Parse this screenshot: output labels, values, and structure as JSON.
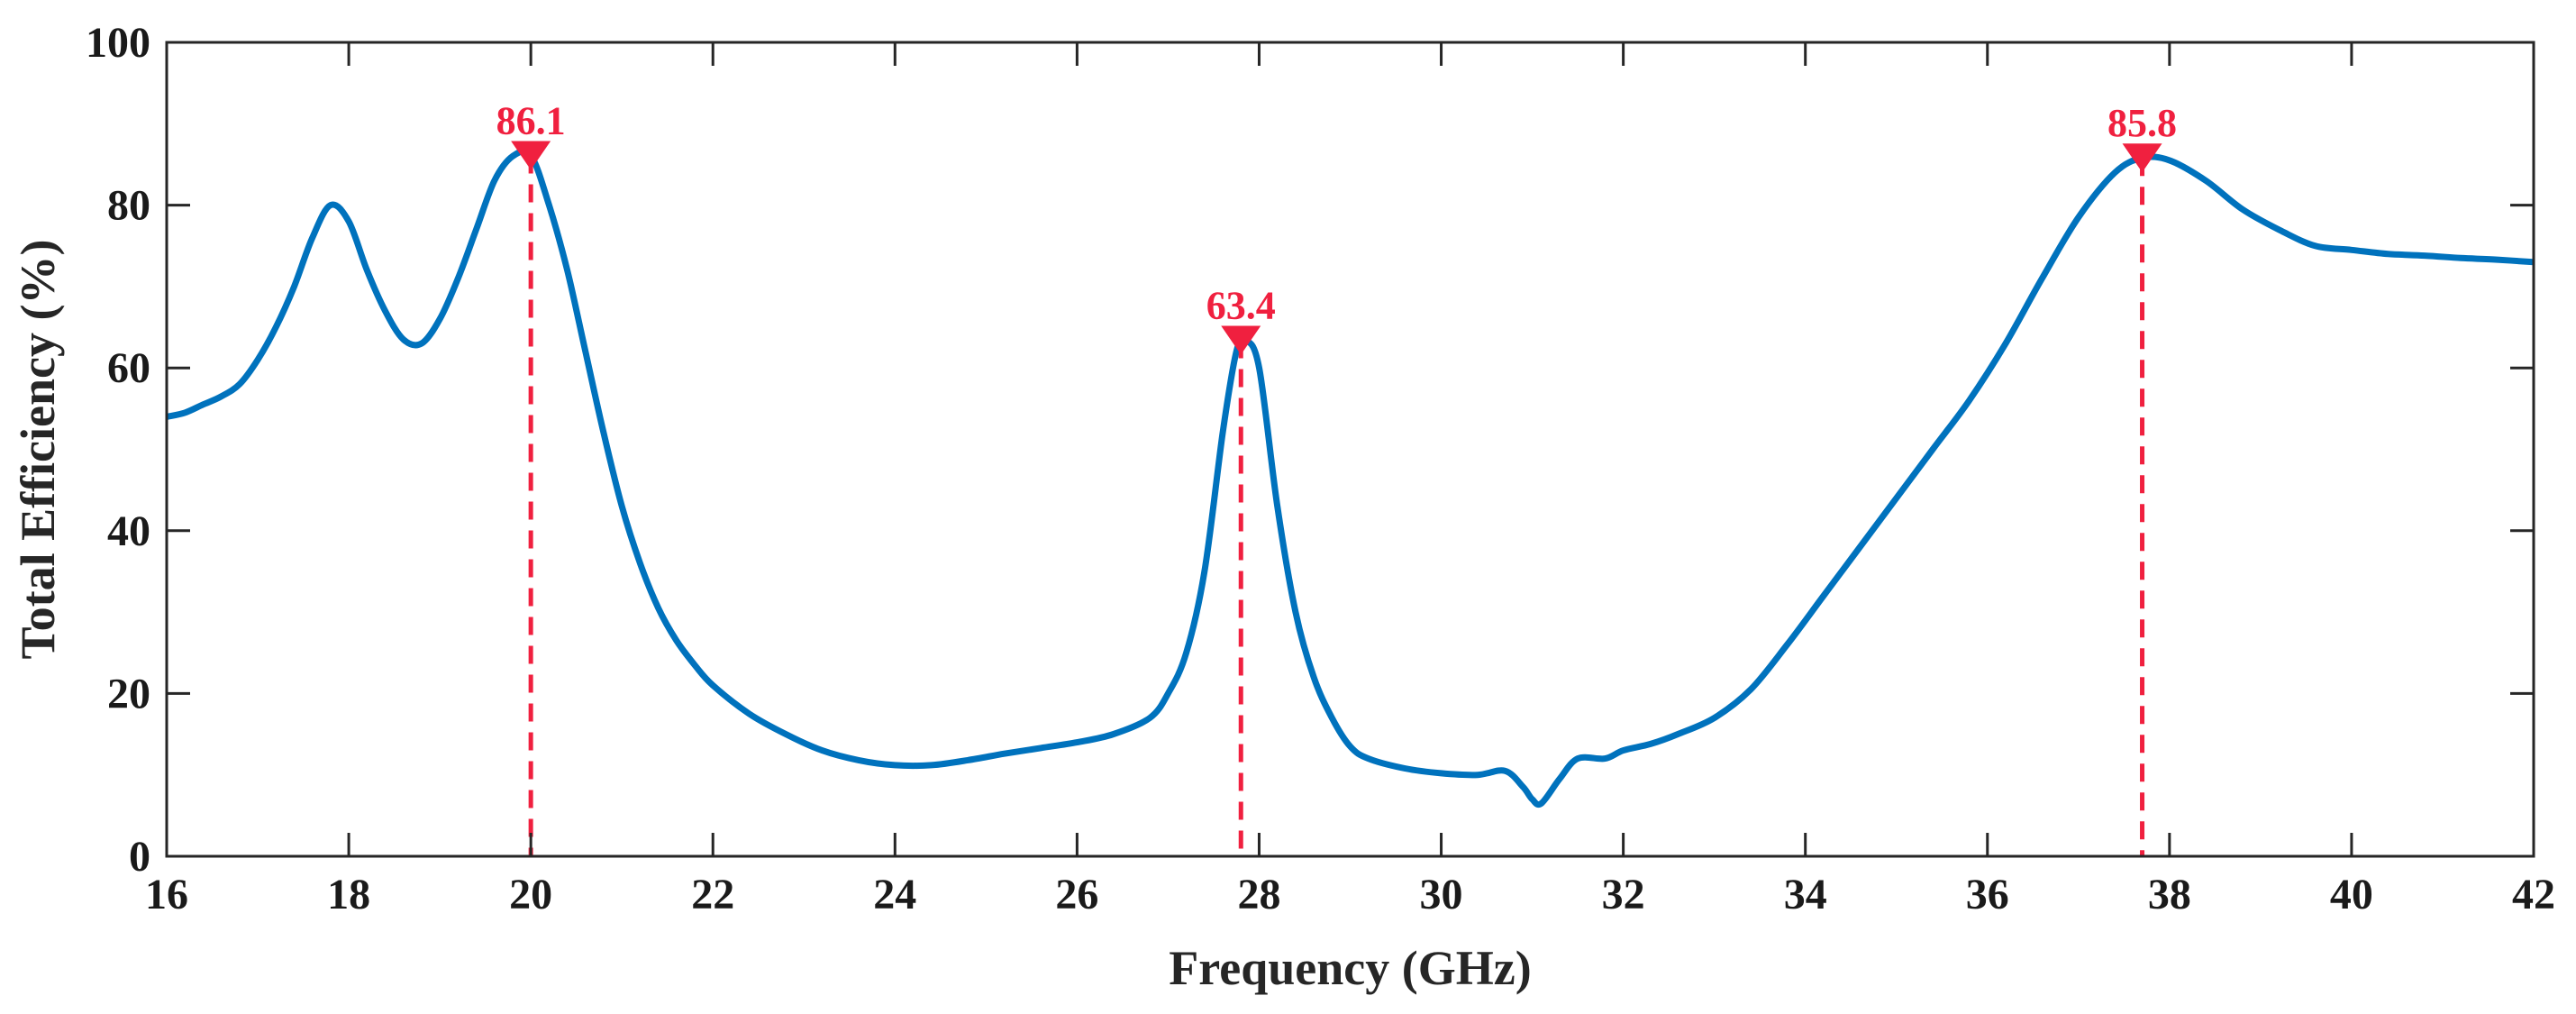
{
  "chart_data": {
    "type": "line",
    "title": "",
    "xlabel": "Frequency (GHz)",
    "ylabel": "Total Efficiency (%)",
    "xlim": [
      16,
      42
    ],
    "ylim": [
      0,
      100
    ],
    "xticks": [
      16,
      18,
      20,
      22,
      24,
      26,
      28,
      30,
      32,
      34,
      36,
      38,
      40,
      42
    ],
    "yticks": [
      0,
      20,
      40,
      60,
      80,
      100
    ],
    "grid": false,
    "colors": {
      "line": "#0072BD",
      "marker": "#F0203F",
      "axis": "#262626"
    },
    "series": [
      {
        "name": "Total Efficiency",
        "x": [
          16,
          16.2,
          16.4,
          16.6,
          16.8,
          17.0,
          17.2,
          17.4,
          17.6,
          17.8,
          18.0,
          18.2,
          18.4,
          18.6,
          18.8,
          19.0,
          19.2,
          19.4,
          19.6,
          19.8,
          20.0,
          20.2,
          20.4,
          20.6,
          20.8,
          21.0,
          21.2,
          21.4,
          21.6,
          21.8,
          22.0,
          22.4,
          22.8,
          23.2,
          23.6,
          24.0,
          24.4,
          24.8,
          25.2,
          25.6,
          26.0,
          26.4,
          26.8,
          27.0,
          27.2,
          27.4,
          27.6,
          27.75,
          27.85,
          28.0,
          28.2,
          28.4,
          28.6,
          28.8,
          29.0,
          29.2,
          29.6,
          30.0,
          30.4,
          30.7,
          30.9,
          31.0,
          31.1,
          31.3,
          31.5,
          31.8,
          32.0,
          32.3,
          32.6,
          33.0,
          33.4,
          33.8,
          34.2,
          34.6,
          35.0,
          35.4,
          35.8,
          36.2,
          36.6,
          37.0,
          37.4,
          37.7,
          38.0,
          38.4,
          38.8,
          39.2,
          39.6,
          40.0,
          40.4,
          40.8,
          41.2,
          41.6,
          42.0
        ],
        "y": [
          54,
          54.5,
          55.5,
          56.5,
          58,
          61,
          65,
          70,
          76,
          80,
          78,
          72,
          67,
          63.5,
          63,
          66,
          71,
          77,
          83,
          86,
          86.1,
          80,
          72,
          62,
          52,
          43,
          36,
          30.5,
          26.5,
          23.5,
          21,
          17.5,
          15,
          13,
          11.8,
          11.2,
          11.2,
          11.8,
          12.6,
          13.3,
          14,
          15,
          17,
          20,
          25,
          35,
          52,
          62,
          63.4,
          60,
          43,
          30,
          22,
          17,
          13.5,
          12,
          10.8,
          10.2,
          10,
          10.5,
          8.5,
          7,
          6.5,
          9.5,
          12,
          12,
          13,
          13.8,
          15,
          17,
          20.5,
          26,
          32,
          38,
          44,
          50,
          56,
          63,
          71,
          78.5,
          84,
          85.8,
          85.5,
          83,
          79.5,
          77,
          75,
          74.5,
          74,
          73.8,
          73.5,
          73.3,
          73
        ]
      }
    ],
    "markers": [
      {
        "x": 20.0,
        "y": 86.1,
        "label": "86.1"
      },
      {
        "x": 27.8,
        "y": 63.4,
        "label": "63.4"
      },
      {
        "x": 37.7,
        "y": 85.8,
        "label": "85.8"
      }
    ]
  }
}
